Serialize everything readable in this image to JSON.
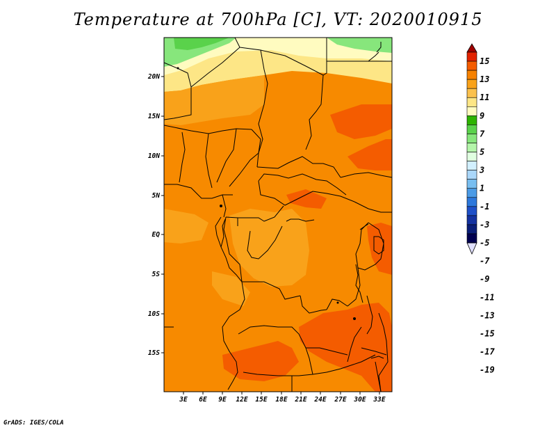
{
  "title": "Temperature at 700hPa [C], VT: 2020010915",
  "credit": "GrADS: IGES/COLA",
  "map": {
    "lat_labels": [
      "20N",
      "15N",
      "10N",
      "5N",
      "EQ",
      "5S",
      "10S",
      "15S"
    ],
    "lon_labels": [
      "3E",
      "6E",
      "9E",
      "12E",
      "15E",
      "18E",
      "21E",
      "24E",
      "27E",
      "30E",
      "33E"
    ]
  },
  "colorbar": {
    "levels": [
      "15",
      "13",
      "11",
      "9",
      "7",
      "5",
      "3",
      "1",
      "-1",
      "-3",
      "-5",
      "-7",
      "-9",
      "-11",
      "-13",
      "-15",
      "-17",
      "-19"
    ],
    "colors": [
      "#a00000",
      "#e22200",
      "#f45c00",
      "#f78200",
      "#f9a21a",
      "#fbc14d",
      "#fde686",
      "#fffbc0",
      "#2db400",
      "#5ad24b",
      "#87e67c",
      "#b4f5aa",
      "#e0ffe0",
      "#d2f0ff",
      "#aad7fa",
      "#78bef0",
      "#4b9be6",
      "#2d78dc",
      "#1e50c8",
      "#1432a0",
      "#0a1e78",
      "#000050",
      "#e0e0ff"
    ]
  },
  "field_colors": {
    "ocean": "#f78a00",
    "land_mid": "#f9a21a",
    "warm_patch": "#f45c00",
    "north_cool": "#fde686",
    "north_pale": "#fffbc0",
    "north_green": "#87e67c",
    "north_green_dark": "#5ad24b"
  }
}
